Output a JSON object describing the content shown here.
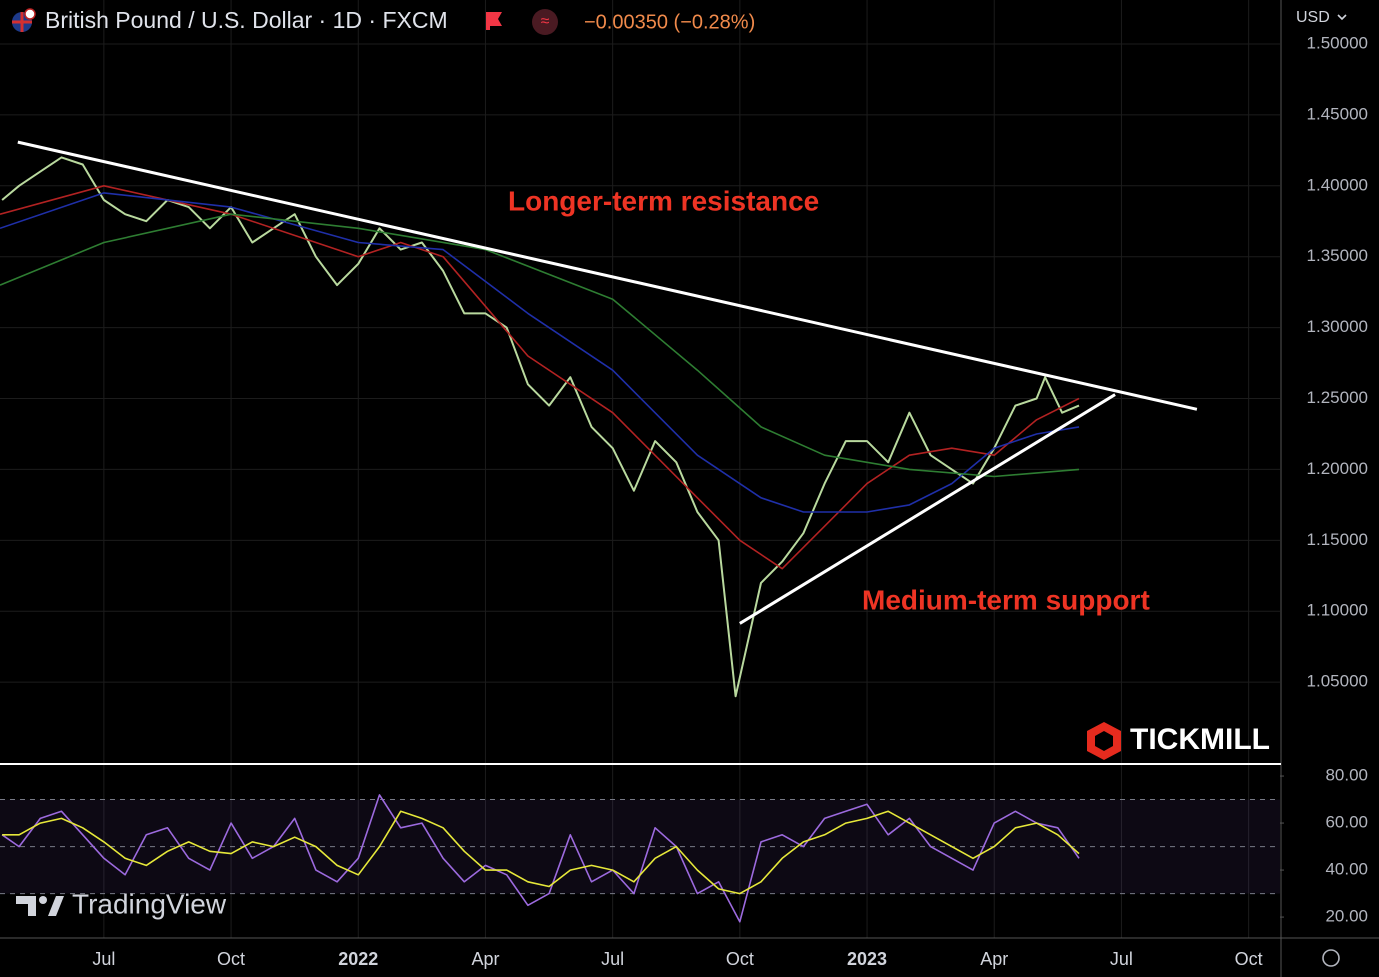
{
  "header": {
    "title": "British Pound / U.S. Dollar · 1D · FXCM",
    "change": "−0.00350 (−0.28%)",
    "currency": "USD"
  },
  "branding": {
    "broker": "TICKMILL",
    "platform": "TradingView"
  },
  "chart_data": [
    {
      "type": "line",
      "xlim": [
        3.55,
        33.74
      ],
      "ylim": [
        0.993,
        1.531
      ],
      "grid": true,
      "yticks": [
        {
          "value": 1.05,
          "label": "1.05000"
        },
        {
          "value": 1.1,
          "label": "1.10000"
        },
        {
          "value": 1.15,
          "label": "1.15000"
        },
        {
          "value": 1.2,
          "label": "1.20000"
        },
        {
          "value": 1.25,
          "label": "1.25000"
        },
        {
          "value": 1.3,
          "label": "1.30000"
        },
        {
          "value": 1.35,
          "label": "1.35000"
        },
        {
          "value": 1.4,
          "label": "1.40000"
        },
        {
          "value": 1.45,
          "label": "1.45000"
        },
        {
          "value": 1.5,
          "label": "1.50000"
        }
      ],
      "series": [
        {
          "color": "#b9d99e",
          "x": [
            3.6,
            4,
            4.5,
            5,
            5.5,
            6,
            6.5,
            7,
            7.5,
            8,
            8.5,
            9,
            9.5,
            10,
            10.5,
            11,
            11.5,
            12,
            12.5,
            13,
            13.5,
            14,
            14.5,
            15,
            15.5,
            16,
            16.5,
            17,
            17.5,
            18,
            18.5,
            19,
            19.5,
            20,
            20.5,
            20.9,
            21.5,
            22,
            22.5,
            23,
            23.5,
            24,
            24.5,
            25,
            25.5,
            26,
            26.5,
            27,
            27.5,
            28,
            28.2,
            28.6,
            29
          ],
          "values": [
            1.39,
            1.4,
            1.41,
            1.42,
            1.415,
            1.39,
            1.38,
            1.375,
            1.39,
            1.385,
            1.37,
            1.385,
            1.36,
            1.37,
            1.38,
            1.35,
            1.33,
            1.345,
            1.37,
            1.355,
            1.36,
            1.34,
            1.31,
            1.31,
            1.3,
            1.26,
            1.245,
            1.265,
            1.23,
            1.215,
            1.185,
            1.22,
            1.205,
            1.17,
            1.15,
            1.04,
            1.12,
            1.135,
            1.155,
            1.19,
            1.22,
            1.22,
            1.205,
            1.24,
            1.21,
            1.2,
            1.19,
            1.215,
            1.245,
            1.25,
            1.265,
            1.24,
            1.245
          ]
        },
        {
          "color": "#b22222",
          "x": [
            3.55,
            6,
            9,
            11,
            12,
            13,
            14,
            16,
            18,
            20,
            21,
            22,
            23,
            24,
            25,
            26,
            27,
            28,
            29
          ],
          "values": [
            1.38,
            1.4,
            1.38,
            1.36,
            1.35,
            1.36,
            1.35,
            1.28,
            1.24,
            1.18,
            1.15,
            1.13,
            1.16,
            1.19,
            1.21,
            1.215,
            1.21,
            1.235,
            1.25
          ]
        },
        {
          "color": "#1f2fa8",
          "x": [
            3.55,
            6,
            9,
            12,
            14,
            16,
            18,
            20,
            21.5,
            22.5,
            24,
            25,
            26,
            27,
            28,
            29
          ],
          "values": [
            1.37,
            1.395,
            1.385,
            1.36,
            1.355,
            1.31,
            1.27,
            1.21,
            1.18,
            1.17,
            1.17,
            1.175,
            1.19,
            1.215,
            1.225,
            1.23
          ]
        },
        {
          "color": "#2e7d32",
          "x": [
            3.55,
            6,
            9,
            12,
            15,
            18,
            20,
            21.5,
            23,
            25,
            27,
            29
          ],
          "values": [
            1.33,
            1.36,
            1.38,
            1.37,
            1.355,
            1.32,
            1.27,
            1.23,
            1.21,
            1.2,
            1.195,
            1.2
          ]
        }
      ],
      "trendlines": [
        {
          "x": [
            3.97,
            31.78
          ],
          "values": [
            1.4308,
            1.2424
          ]
        },
        {
          "x": [
            21.0,
            29.85
          ],
          "values": [
            1.0914,
            1.2528
          ]
        }
      ],
      "annotations": [
        "Longer-term resistance",
        "Medium-term support"
      ]
    },
    {
      "type": "line",
      "xlim": [
        3.55,
        33.74
      ],
      "ylim": [
        11.1,
        84.7
      ],
      "levels": [
        70,
        50,
        30
      ],
      "xticks": [
        {
          "value": 6,
          "label": "Jul"
        },
        {
          "value": 9,
          "label": "Oct"
        },
        {
          "value": 12,
          "label": "2022"
        },
        {
          "value": 15,
          "label": "Apr"
        },
        {
          "value": 18,
          "label": "Jul"
        },
        {
          "value": 21,
          "label": "Oct"
        },
        {
          "value": 24,
          "label": "2023"
        },
        {
          "value": 27,
          "label": "Apr"
        },
        {
          "value": 30,
          "label": "Jul"
        },
        {
          "value": 33,
          "label": "Oct"
        }
      ],
      "yticks": [
        {
          "value": 20,
          "label": "20.00"
        },
        {
          "value": 40,
          "label": "40.00"
        },
        {
          "value": 60,
          "label": "60.00"
        },
        {
          "value": 80,
          "label": "80.00"
        }
      ],
      "x": [
        3.6,
        4,
        4.5,
        5,
        5.5,
        6,
        6.5,
        7,
        7.5,
        8,
        8.5,
        9,
        9.5,
        10,
        10.5,
        11,
        11.5,
        12,
        12.5,
        13,
        13.5,
        14,
        14.5,
        15,
        15.5,
        16,
        16.5,
        17,
        17.5,
        18,
        18.5,
        19,
        19.5,
        20,
        20.5,
        21,
        21.5,
        22,
        22.5,
        23,
        23.5,
        24,
        24.5,
        25,
        25.5,
        26,
        26.5,
        27,
        27.5,
        28,
        28.5,
        29
      ],
      "series": [
        {
          "color": "#9c6ade",
          "values": [
            55,
            50,
            62,
            65,
            55,
            45,
            38,
            55,
            58,
            45,
            40,
            60,
            45,
            50,
            62,
            40,
            35,
            45,
            72,
            58,
            60,
            45,
            35,
            42,
            38,
            25,
            30,
            55,
            35,
            40,
            30,
            58,
            50,
            30,
            35,
            18,
            52,
            55,
            50,
            62,
            65,
            68,
            55,
            62,
            50,
            45,
            40,
            60,
            65,
            60,
            58,
            45
          ]
        },
        {
          "color": "#e6e83a",
          "values": [
            55,
            55,
            60,
            62,
            58,
            52,
            45,
            42,
            48,
            52,
            48,
            47,
            52,
            50,
            54,
            50,
            42,
            38,
            50,
            65,
            62,
            58,
            48,
            40,
            40,
            35,
            33,
            40,
            42,
            40,
            35,
            45,
            50,
            40,
            32,
            30,
            35,
            45,
            52,
            55,
            60,
            62,
            65,
            60,
            55,
            50,
            45,
            50,
            58,
            60,
            55,
            47
          ]
        }
      ]
    }
  ]
}
